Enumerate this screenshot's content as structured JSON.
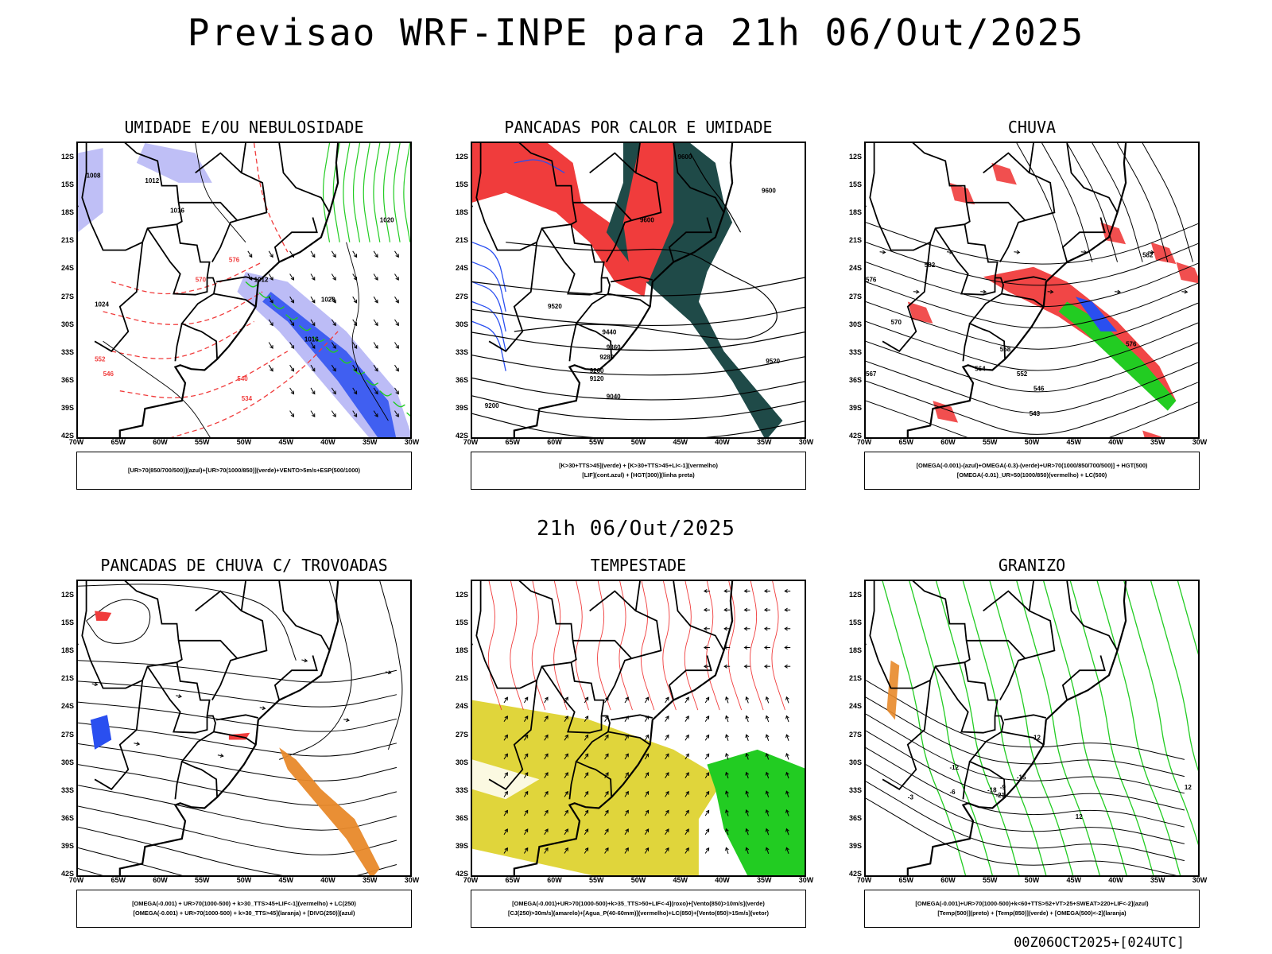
{
  "main_title": "Previsao WRF-INPE  para 21h 06/Out/2025",
  "mid_title": "21h 06/Out/2025",
  "footer": "00Z06OCT2025+[024UTC]",
  "lat_labels": [
    "12S",
    "15S",
    "18S",
    "21S",
    "24S",
    "27S",
    "30S",
    "33S",
    "36S",
    "39S",
    "42S"
  ],
  "lon_labels": [
    "70W",
    "65W",
    "60W",
    "55W",
    "50W",
    "45W",
    "40W",
    "35W",
    "30W"
  ],
  "panels": [
    {
      "title": "UMIDADE E/OU NEBULOSIDADE",
      "legend": [
        "[UR>70(850/700/500)](azul)+[UR>70(1000/850)](verde)+VENTO>5m/s+ESP(500/1000)"
      ]
    },
    {
      "title": "PANCADAS POR CALOR E UMIDADE",
      "legend": [
        "[K>30+TTS>45](verde) + [K>30+TTS>45+LI<-1](vermelho)",
        "[LIF](cont.azul) + [HGT(300)](linha preta)"
      ]
    },
    {
      "title": "CHUVA",
      "legend": [
        "[OMEGA(-0.001)-(azul)+OMEGA(-0.3)-(verde)+UR>70(1000/850/700/500)] + HGT(500)",
        "[OMEGA(-0.01)_UR>50(1000/850)(vermelho) + LC(500)"
      ]
    },
    {
      "title": "PANCADAS DE CHUVA C/ TROVOADAS",
      "legend": [
        "[OMEGA(-0.001) + UR>70(1000-500) + k>30_TTS>45+LIF<-1](vermelho) + LC(250)",
        "[OMEGA(-0.001) + UR>70(1000-500) + k>30_TTS>45](laranja) + [DIVG(250)](azul)"
      ]
    },
    {
      "title": "TEMPESTADE",
      "legend": [
        "[OMEGA(-0.001)+UR>70(1000-500)+k>35_TTS>50+LIF<-4](roxo)+[Vento(850)>10m/s](verde)",
        "[CJ(250)>30m/s](amarelo)+[Agua_P(40-60mm)](vermelho)+LC(850)+[Vento(850)>15m/s](vetor)"
      ]
    },
    {
      "title": "GRANIZO",
      "legend": [
        "[OMEGA(-0.001)+UR>70(1000-500)+k<60+TTS>52+VT>25+SWEAT>220+LIF<-2](azul)",
        "[Temp(500)](preto) + [Temp(850)](verde) + [OMEGA(500)<-2](laranja)"
      ]
    }
  ],
  "contour_labels": {
    "p1": [
      "1008",
      "1012",
      "1016",
      "1020",
      "1024",
      "546",
      "552",
      "570",
      "576",
      "1012",
      "1016",
      "1020",
      "534",
      "540"
    ],
    "p2": [
      "9600",
      "9600",
      "9600",
      "9520",
      "9440",
      "9360",
      "9280",
      "9200",
      "9120",
      "9040",
      "9200",
      "9520"
    ],
    "p3": [
      "582",
      "576",
      "570",
      "567",
      "564",
      "558",
      "552",
      "546",
      "543",
      "576",
      "582"
    ],
    "p6": [
      "12",
      "-3",
      "-6",
      "-9",
      "-12",
      "-15",
      "-18",
      "-21",
      "12",
      "12"
    ]
  },
  "chart_data": [
    {
      "type": "map",
      "title": "UMIDADE E/OU NEBULOSIDADE",
      "x_range": [
        "70W",
        "30W"
      ],
      "y_range": [
        "12S",
        "42S"
      ],
      "isobar_labels": [
        1008,
        1012,
        1016,
        1020,
        1024
      ],
      "thickness_labels": [
        534,
        540,
        546,
        552,
        570,
        576
      ]
    },
    {
      "type": "map",
      "title": "PANCADAS POR CALOR E UMIDADE",
      "x_range": [
        "70W",
        "30W"
      ],
      "y_range": [
        "12S",
        "42S"
      ],
      "hgt300_labels": [
        9040,
        9120,
        9200,
        9280,
        9360,
        9440,
        9520,
        9600
      ]
    },
    {
      "type": "map",
      "title": "CHUVA",
      "x_range": [
        "70W",
        "30W"
      ],
      "y_range": [
        "12S",
        "42S"
      ],
      "hgt500_labels": [
        543,
        546,
        552,
        558,
        564,
        567,
        570,
        576,
        582
      ]
    },
    {
      "type": "map",
      "title": "PANCADAS DE CHUVA C/ TROVOADAS",
      "x_range": [
        "70W",
        "30W"
      ],
      "y_range": [
        "12S",
        "42S"
      ]
    },
    {
      "type": "map",
      "title": "TEMPESTADE",
      "x_range": [
        "70W",
        "30W"
      ],
      "y_range": [
        "12S",
        "42S"
      ]
    },
    {
      "type": "map",
      "title": "GRANIZO",
      "x_range": [
        "70W",
        "30W"
      ],
      "y_range": [
        "12S",
        "42S"
      ],
      "temp_labels": [
        12,
        -3,
        -6,
        -9,
        -12,
        -15,
        -18,
        -21
      ]
    }
  ],
  "colors": {
    "blue": "#2a4ff0",
    "lightblue": "#b8b8f5",
    "green": "#22cc22",
    "red": "#f03c3c",
    "orange": "#e8892a",
    "darkteal": "#1f4a48",
    "yellow": "#ddd12a",
    "black": "#000000"
  }
}
